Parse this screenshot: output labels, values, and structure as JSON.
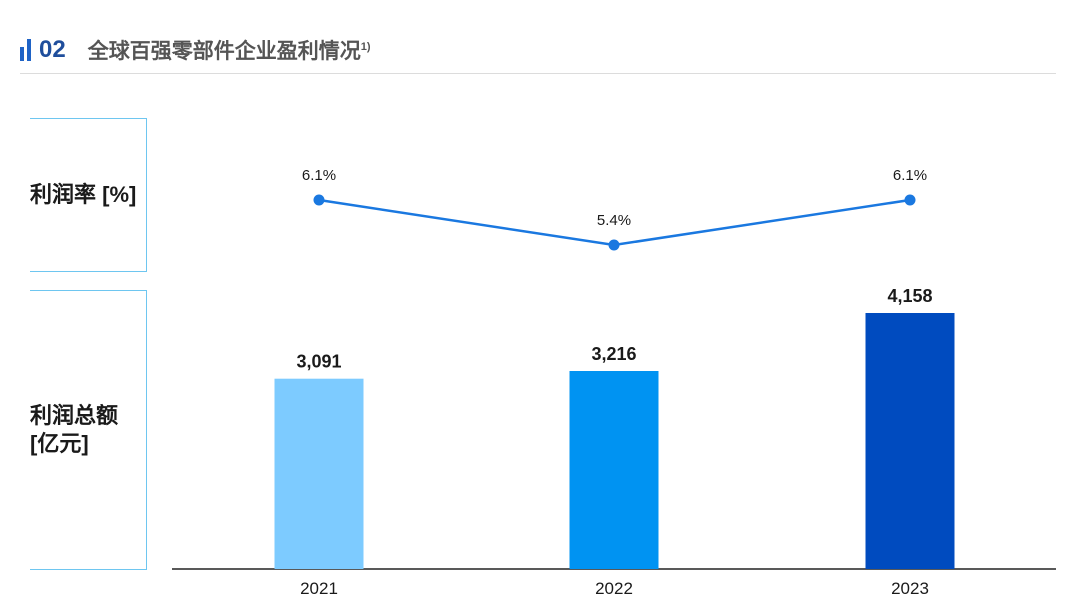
{
  "header": {
    "number": "02",
    "title": "全球百强零部件企业盈利情况",
    "footnote": "1)"
  },
  "labels": {
    "rate_label": "利润率 [%]",
    "total_label_line1": "利润总额",
    "total_label_line2": "[亿元]"
  },
  "colors": {
    "line": "#1a78e0",
    "bars": [
      "#7dcbff",
      "#0093f2",
      "#004bbf"
    ]
  },
  "chart_data": [
    {
      "type": "line",
      "categories": [
        "2021",
        "2022",
        "2023"
      ],
      "series": [
        {
          "values": [
            6.1,
            5.4,
            6.1
          ]
        }
      ],
      "data_labels": [
        "6.1%",
        "5.4%",
        "6.1%"
      ],
      "ylabel": "利润率 [%]"
    },
    {
      "type": "bar",
      "categories": [
        "2021",
        "2022",
        "2023"
      ],
      "values": [
        3091,
        3216,
        4158
      ],
      "data_labels": [
        "3,091",
        "3,216",
        "4,158"
      ],
      "ylabel": "利润总额 [亿元]"
    }
  ]
}
